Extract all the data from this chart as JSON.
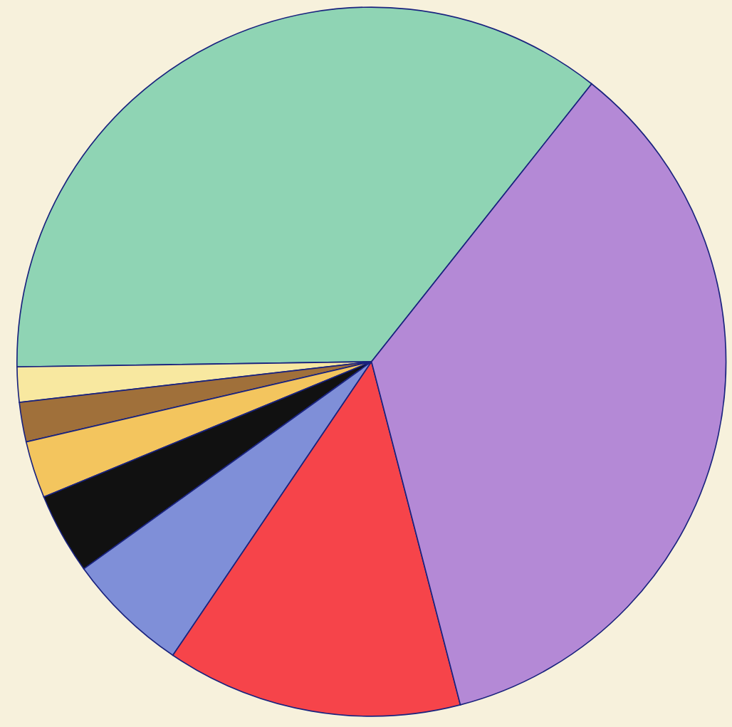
{
  "chart_data": {
    "type": "pie",
    "categories": [
      null,
      null,
      null,
      null,
      null,
      null,
      null,
      null
    ],
    "values": [
      35.9,
      1.6,
      1.8,
      2.6,
      3.7,
      5.6,
      13.5,
      35.3
    ],
    "colors": [
      "#8fd4b4",
      "#f8e8a0",
      "#a0703a",
      "#f3c55e",
      "#111111",
      "#7f8fd8",
      "#f6444a",
      "#b489d6"
    ]
  }
}
